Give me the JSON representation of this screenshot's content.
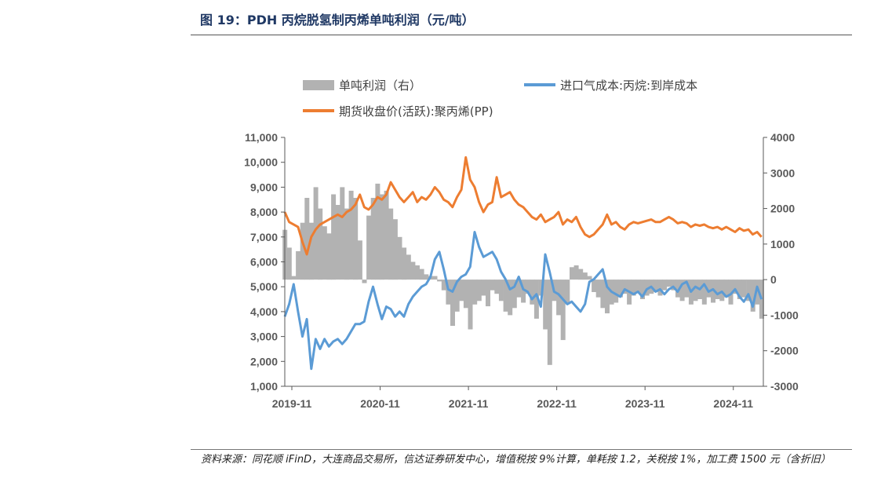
{
  "figure": {
    "title": "图 19：PDH 丙烷脱氢制丙烯单吨利润（元/吨）",
    "source": "资料来源：同花顺 iFinD，大连商品交易所，信达证券研发中心，增值税按 9%计算，单耗按 1.2，关税按 1%，加工费 1500 元（含折旧）"
  },
  "colors": {
    "profit": "#b2b2b2",
    "propane_cost": "#5b9bd5",
    "pp_futures": "#ed7d31",
    "axis": "#595959"
  },
  "chart_data": {
    "type": "line+area",
    "x_ticks": [
      "2019-11",
      "2020-11",
      "2021-11",
      "2022-11",
      "2023-11",
      "2024-11"
    ],
    "x_range": [
      2019.75,
      2025.17
    ],
    "y_left": {
      "ticks": [
        "1,000",
        "2,000",
        "3,000",
        "4,000",
        "5,000",
        "6,000",
        "7,000",
        "8,000",
        "9,000",
        "10,000",
        "11,000"
      ],
      "range": [
        1000,
        11000
      ]
    },
    "y_right": {
      "ticks": [
        "-3000",
        "-2000",
        "-1000",
        "0",
        "1000",
        "2000",
        "3000",
        "4000"
      ],
      "range": [
        -3000,
        4000
      ]
    },
    "series": [
      {
        "name": "单吨利润（右）",
        "axis": "right",
        "type": "area",
        "x": [
          2019.75,
          2019.8,
          2019.85,
          2019.9,
          2019.95,
          2020.0,
          2020.05,
          2020.1,
          2020.15,
          2020.2,
          2020.25,
          2020.3,
          2020.35,
          2020.4,
          2020.45,
          2020.5,
          2020.55,
          2020.6,
          2020.65,
          2020.7,
          2020.75,
          2020.8,
          2020.85,
          2020.9,
          2020.95,
          2021.0,
          2021.05,
          2021.1,
          2021.15,
          2021.2,
          2021.25,
          2021.3,
          2021.35,
          2021.4,
          2021.45,
          2021.5,
          2021.55,
          2021.6,
          2021.65,
          2021.7,
          2021.75,
          2021.8,
          2021.85,
          2021.9,
          2021.95,
          2022.0,
          2022.05,
          2022.1,
          2022.15,
          2022.2,
          2022.25,
          2022.3,
          2022.35,
          2022.4,
          2022.45,
          2022.5,
          2022.55,
          2022.6,
          2022.65,
          2022.7,
          2022.75,
          2022.8,
          2022.85,
          2022.9,
          2022.95,
          2023.0,
          2023.05,
          2023.1,
          2023.15,
          2023.2,
          2023.25,
          2023.3,
          2023.35,
          2023.4,
          2023.45,
          2023.5,
          2023.55,
          2023.6,
          2023.65,
          2023.7,
          2023.75,
          2023.8,
          2023.85,
          2023.9,
          2023.95,
          2024.0,
          2024.05,
          2024.1,
          2024.15,
          2024.2,
          2024.25,
          2024.3,
          2024.35,
          2024.4,
          2024.45,
          2024.5,
          2024.55,
          2024.6,
          2024.65,
          2024.7,
          2024.75,
          2024.8,
          2024.85,
          2024.9,
          2024.95,
          2025.0,
          2025.05,
          2025.1,
          2025.15
        ],
        "values": [
          1400,
          900,
          100,
          800,
          1600,
          2300,
          1600,
          2600,
          2000,
          1500,
          1300,
          2400,
          2100,
          2600,
          2000,
          2500,
          2300,
          1100,
          -100,
          1800,
          2300,
          2700,
          2400,
          2500,
          2000,
          1700,
          1200,
          900,
          700,
          500,
          400,
          300,
          150,
          100,
          100,
          -50,
          -300,
          -700,
          -1300,
          -900,
          -600,
          -800,
          -1400,
          -700,
          -600,
          -450,
          -750,
          -300,
          -400,
          -600,
          -900,
          -1000,
          -800,
          -500,
          -650,
          -400,
          -700,
          -1100,
          -450,
          -1400,
          -2400,
          -600,
          -1000,
          -1700,
          -650,
          350,
          400,
          300,
          200,
          100,
          -350,
          -500,
          -800,
          -950,
          -700,
          -650,
          -500,
          -400,
          -700,
          -450,
          -350,
          -550,
          -450,
          -400,
          -350,
          -450,
          -300,
          -200,
          -300,
          -500,
          -600,
          -500,
          -700,
          -600,
          -550,
          -700,
          -500,
          -650,
          -550,
          -600,
          -500,
          -700,
          -400,
          -550,
          -500,
          -600,
          -900,
          -700,
          -1100
        ]
      },
      {
        "name": "进口气成本:丙烷:到岸成本",
        "axis": "left",
        "type": "line",
        "x": [
          2019.75,
          2019.8,
          2019.85,
          2019.9,
          2019.95,
          2020.0,
          2020.05,
          2020.1,
          2020.15,
          2020.2,
          2020.25,
          2020.3,
          2020.35,
          2020.4,
          2020.45,
          2020.5,
          2020.55,
          2020.6,
          2020.65,
          2020.7,
          2020.75,
          2020.8,
          2020.85,
          2020.9,
          2020.95,
          2021.0,
          2021.05,
          2021.1,
          2021.15,
          2021.2,
          2021.25,
          2021.3,
          2021.35,
          2021.4,
          2021.45,
          2021.5,
          2021.55,
          2021.6,
          2021.65,
          2021.7,
          2021.75,
          2021.8,
          2021.85,
          2021.9,
          2021.95,
          2022.0,
          2022.05,
          2022.1,
          2022.15,
          2022.2,
          2022.25,
          2022.3,
          2022.35,
          2022.4,
          2022.45,
          2022.5,
          2022.55,
          2022.6,
          2022.65,
          2022.7,
          2022.75,
          2022.8,
          2022.85,
          2022.9,
          2022.95,
          2023.0,
          2023.05,
          2023.1,
          2023.15,
          2023.2,
          2023.25,
          2023.3,
          2023.35,
          2023.4,
          2023.45,
          2023.5,
          2023.55,
          2023.6,
          2023.65,
          2023.7,
          2023.75,
          2023.8,
          2023.85,
          2023.9,
          2023.95,
          2024.0,
          2024.05,
          2024.1,
          2024.15,
          2024.2,
          2024.25,
          2024.3,
          2024.35,
          2024.4,
          2024.45,
          2024.5,
          2024.55,
          2024.6,
          2024.65,
          2024.7,
          2024.75,
          2024.8,
          2024.85,
          2024.9,
          2024.95,
          2025.0,
          2025.05,
          2025.1,
          2025.15
        ],
        "values": [
          3800,
          4300,
          5100,
          4000,
          3000,
          3700,
          1700,
          2900,
          2500,
          2900,
          2600,
          2800,
          2900,
          2700,
          2900,
          3200,
          3500,
          3500,
          3600,
          4400,
          5000,
          4300,
          3700,
          4200,
          4100,
          3800,
          4000,
          3800,
          4300,
          4600,
          4800,
          5000,
          5100,
          5400,
          6100,
          6400,
          5700,
          4900,
          4800,
          5200,
          5400,
          5500,
          5800,
          7200,
          6600,
          6200,
          6300,
          6400,
          6100,
          5600,
          5300,
          4900,
          5000,
          5400,
          4900,
          4800,
          4500,
          4700,
          4200,
          6300,
          5600,
          4800,
          4700,
          4500,
          4300,
          4400,
          4200,
          4000,
          4300,
          5200,
          5300,
          5500,
          5700,
          5000,
          4800,
          4700,
          4600,
          4900,
          4800,
          4700,
          4800,
          4600,
          4900,
          5000,
          4800,
          4900,
          4700,
          4900,
          5000,
          4800,
          5100,
          5200,
          4800,
          5000,
          4900,
          5100,
          4800,
          4900,
          4700,
          4800,
          4600,
          4700,
          4900,
          4600,
          4400,
          4700,
          4200,
          5000,
          4500
        ]
      },
      {
        "name": "期货收盘价(活跃):聚丙烯(PP)",
        "axis": "left",
        "type": "line",
        "x": [
          2019.75,
          2019.8,
          2019.85,
          2019.9,
          2019.95,
          2020.0,
          2020.05,
          2020.1,
          2020.15,
          2020.2,
          2020.25,
          2020.3,
          2020.35,
          2020.4,
          2020.45,
          2020.5,
          2020.55,
          2020.6,
          2020.65,
          2020.7,
          2020.75,
          2020.8,
          2020.85,
          2020.9,
          2020.95,
          2021.0,
          2021.05,
          2021.1,
          2021.15,
          2021.2,
          2021.25,
          2021.3,
          2021.35,
          2021.4,
          2021.45,
          2021.5,
          2021.55,
          2021.6,
          2021.65,
          2021.7,
          2021.75,
          2021.8,
          2021.85,
          2021.9,
          2021.95,
          2022.0,
          2022.05,
          2022.1,
          2022.15,
          2022.2,
          2022.25,
          2022.3,
          2022.35,
          2022.4,
          2022.45,
          2022.5,
          2022.55,
          2022.6,
          2022.65,
          2022.7,
          2022.75,
          2022.8,
          2022.85,
          2022.9,
          2022.95,
          2023.0,
          2023.05,
          2023.1,
          2023.15,
          2023.2,
          2023.25,
          2023.3,
          2023.35,
          2023.4,
          2023.45,
          2023.5,
          2023.55,
          2023.6,
          2023.65,
          2023.7,
          2023.75,
          2023.8,
          2023.85,
          2023.9,
          2023.95,
          2024.0,
          2024.05,
          2024.1,
          2024.15,
          2024.2,
          2024.25,
          2024.3,
          2024.35,
          2024.4,
          2024.45,
          2024.5,
          2024.55,
          2024.6,
          2024.65,
          2024.7,
          2024.75,
          2024.8,
          2024.85,
          2024.9,
          2024.95,
          2025.0,
          2025.05,
          2025.1,
          2025.15
        ],
        "values": [
          8000,
          7600,
          7500,
          7400,
          6800,
          6300,
          7000,
          7300,
          7500,
          7600,
          7700,
          7800,
          7900,
          7800,
          8000,
          8100,
          8300,
          8700,
          8200,
          8100,
          8300,
          8600,
          8500,
          8700,
          9200,
          8900,
          8600,
          8400,
          8600,
          8800,
          8400,
          8600,
          8500,
          8700,
          9000,
          8800,
          8500,
          8400,
          8200,
          8600,
          8900,
          10200,
          9300,
          9000,
          8400,
          8000,
          8300,
          8400,
          9400,
          8600,
          8700,
          8800,
          8500,
          8300,
          8200,
          8000,
          7800,
          7700,
          7900,
          7600,
          7700,
          7800,
          8000,
          7500,
          7700,
          7600,
          7800,
          7400,
          7100,
          7000,
          7100,
          7300,
          7500,
          7900,
          7500,
          7600,
          7400,
          7300,
          7500,
          7600,
          7550,
          7600,
          7650,
          7700,
          7600,
          7600,
          7700,
          7800,
          7700,
          7550,
          7600,
          7550,
          7400,
          7500,
          7450,
          7500,
          7400,
          7350,
          7400,
          7300,
          7400,
          7300,
          7200,
          7350,
          7250,
          7300,
          7100,
          7200,
          7000
        ]
      }
    ]
  }
}
